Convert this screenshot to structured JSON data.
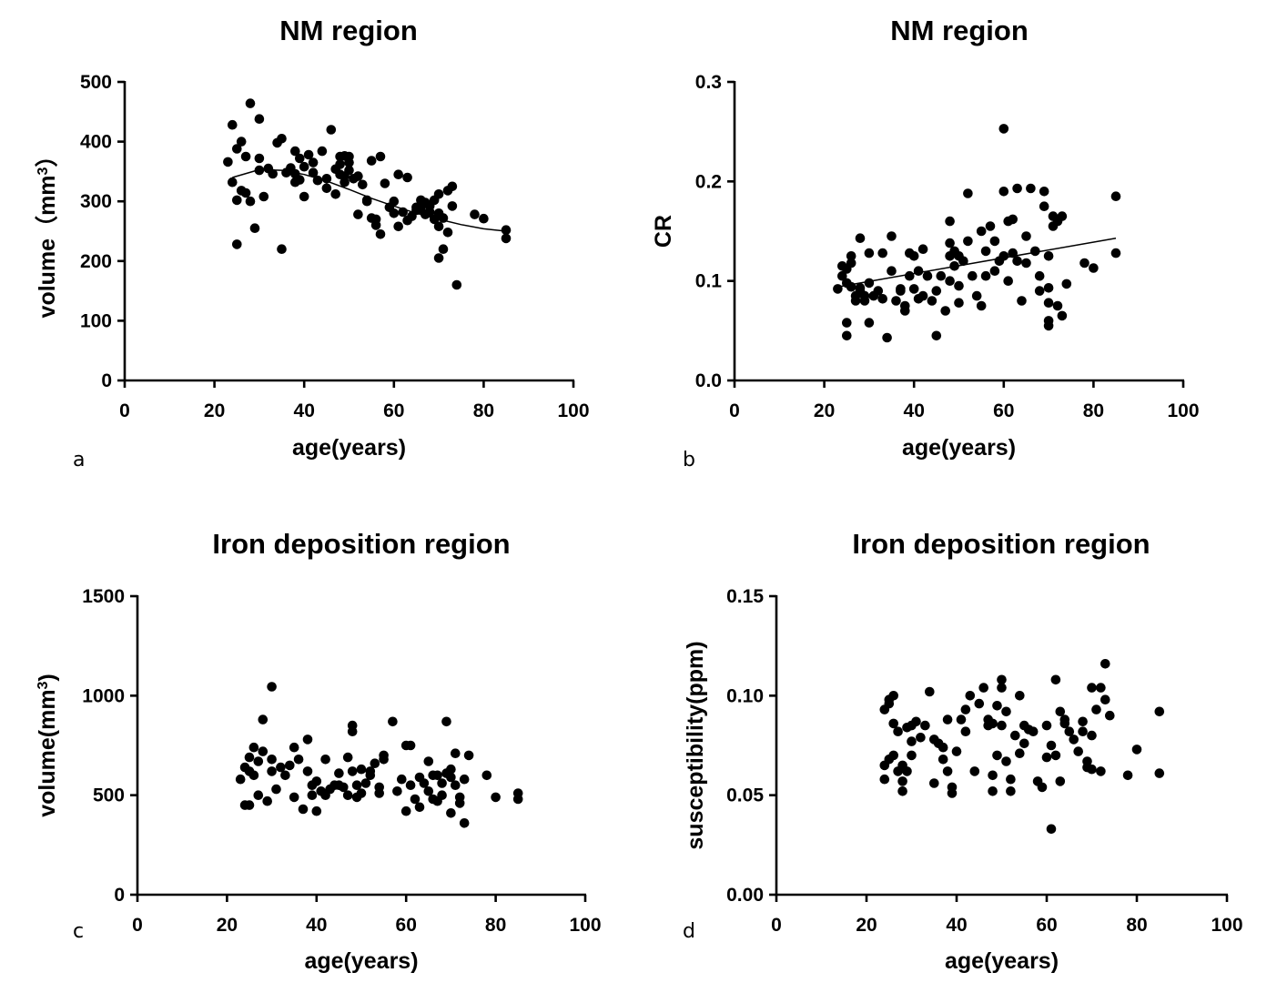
{
  "chart_data": [
    {
      "id": "a",
      "type": "scatter",
      "panel_label": "a",
      "title": "NM region",
      "xlabel": "age(years)",
      "ylabel": {
        "main": "volume（mm",
        "sup": "3",
        "close": "）"
      },
      "xlim": [
        0,
        100
      ],
      "ylim": [
        0,
        500
      ],
      "xticks": [
        "0",
        "20",
        "40",
        "60",
        "80",
        "100"
      ],
      "yticks": [
        "0",
        "100",
        "200",
        "300",
        "400",
        "500"
      ],
      "trend": {
        "type": "polynomial",
        "x": [
          24,
          30,
          35,
          40,
          45,
          50,
          55,
          60,
          65,
          70,
          75,
          80,
          85
        ],
        "y": [
          340,
          353,
          352,
          345,
          334,
          320,
          305,
          292,
          280,
          270,
          261,
          254,
          250
        ]
      },
      "x": [
        23,
        24,
        24,
        25,
        25,
        25,
        26,
        26,
        27,
        27,
        28,
        28,
        29,
        30,
        30,
        30,
        31,
        32,
        33,
        34,
        35,
        35,
        36,
        37,
        38,
        38,
        38,
        39,
        39,
        40,
        40,
        41,
        42,
        42,
        43,
        44,
        45,
        45,
        46,
        47,
        47,
        48,
        48,
        48,
        49,
        49,
        49,
        50,
        50,
        50,
        51,
        52,
        52,
        53,
        54,
        54,
        55,
        55,
        56,
        56,
        57,
        57,
        58,
        59,
        60,
        60,
        61,
        61,
        62,
        63,
        63,
        64,
        65,
        65,
        66,
        66,
        67,
        67,
        68,
        68,
        69,
        69,
        70,
        70,
        70,
        70,
        71,
        71,
        72,
        72,
        73,
        73,
        74,
        78,
        80,
        85,
        85
      ],
      "y": [
        366,
        332,
        428,
        388,
        302,
        228,
        318,
        400,
        375,
        314,
        464,
        300,
        255,
        438,
        372,
        352,
        308,
        355,
        346,
        398,
        405,
        220,
        348,
        356,
        346,
        332,
        384,
        336,
        372,
        358,
        308,
        378,
        365,
        348,
        335,
        384,
        338,
        322,
        420,
        312,
        354,
        375,
        345,
        362,
        332,
        342,
        376,
        352,
        365,
        375,
        338,
        342,
        278,
        328,
        300,
        302,
        272,
        368,
        260,
        270,
        245,
        375,
        330,
        290,
        300,
        280,
        258,
        345,
        282,
        268,
        340,
        275,
        290,
        285,
        302,
        287,
        298,
        278,
        292,
        282,
        302,
        270,
        312,
        258,
        280,
        205,
        272,
        220,
        318,
        248,
        292,
        325,
        160,
        278,
        271,
        238,
        252
      ]
    },
    {
      "id": "b",
      "type": "scatter",
      "panel_label": "b",
      "title": "NM region",
      "xlabel": "age(years)",
      "ylabel": {
        "main": "CR"
      },
      "xlim": [
        0,
        100
      ],
      "ylim": [
        0.0,
        0.3
      ],
      "xticks": [
        "0",
        "20",
        "40",
        "60",
        "80",
        "100"
      ],
      "yticks": [
        "0.0",
        "0.1",
        "0.2",
        "0.3"
      ],
      "trend": {
        "type": "linear",
        "x": [
          23,
          85
        ],
        "y": [
          0.094,
          0.143
        ]
      },
      "x": [
        23,
        24,
        24,
        25,
        25,
        25,
        25,
        26,
        26,
        26,
        27,
        27,
        28,
        28,
        28,
        29,
        29,
        30,
        30,
        30,
        31,
        32,
        33,
        33,
        34,
        35,
        35,
        36,
        37,
        37,
        38,
        38,
        39,
        39,
        40,
        40,
        41,
        41,
        42,
        42,
        43,
        44,
        45,
        45,
        46,
        47,
        48,
        48,
        48,
        48,
        49,
        49,
        50,
        50,
        50,
        51,
        52,
        52,
        53,
        54,
        55,
        55,
        56,
        56,
        57,
        58,
        58,
        59,
        60,
        60,
        60,
        61,
        61,
        62,
        62,
        63,
        63,
        64,
        65,
        65,
        66,
        67,
        68,
        68,
        69,
        69,
        70,
        70,
        70,
        70,
        70,
        71,
        71,
        72,
        72,
        73,
        73,
        74,
        78,
        80,
        85,
        85
      ],
      "y": [
        0.092,
        0.105,
        0.115,
        0.098,
        0.112,
        0.058,
        0.045,
        0.125,
        0.094,
        0.118,
        0.085,
        0.08,
        0.093,
        0.143,
        0.09,
        0.085,
        0.08,
        0.128,
        0.098,
        0.058,
        0.085,
        0.09,
        0.128,
        0.082,
        0.043,
        0.145,
        0.11,
        0.08,
        0.092,
        0.09,
        0.07,
        0.075,
        0.128,
        0.105,
        0.092,
        0.125,
        0.082,
        0.11,
        0.132,
        0.085,
        0.105,
        0.08,
        0.045,
        0.09,
        0.105,
        0.07,
        0.16,
        0.138,
        0.125,
        0.1,
        0.13,
        0.115,
        0.078,
        0.125,
        0.095,
        0.12,
        0.188,
        0.14,
        0.105,
        0.085,
        0.15,
        0.075,
        0.13,
        0.105,
        0.155,
        0.14,
        0.11,
        0.12,
        0.253,
        0.19,
        0.125,
        0.16,
        0.1,
        0.128,
        0.162,
        0.12,
        0.193,
        0.08,
        0.118,
        0.145,
        0.193,
        0.13,
        0.105,
        0.09,
        0.175,
        0.19,
        0.125,
        0.06,
        0.055,
        0.078,
        0.093,
        0.155,
        0.165,
        0.16,
        0.075,
        0.065,
        0.165,
        0.097,
        0.118,
        0.113,
        0.128,
        0.185
      ]
    },
    {
      "id": "c",
      "type": "scatter",
      "panel_label": "c",
      "title": "Iron deposition region",
      "xlabel": "age(years)",
      "ylabel": {
        "main": "volume(mm",
        "sup": "3",
        "close": ")"
      },
      "xlim": [
        0,
        100
      ],
      "ylim": [
        0,
        1500
      ],
      "xticks": [
        "0",
        "20",
        "40",
        "60",
        "80",
        "100"
      ],
      "yticks": [
        "0",
        "500",
        "1000",
        "1500"
      ],
      "x": [
        23,
        24,
        24,
        25,
        25,
        25,
        26,
        26,
        27,
        27,
        28,
        28,
        29,
        30,
        30,
        30,
        31,
        32,
        33,
        34,
        35,
        35,
        36,
        37,
        38,
        38,
        39,
        39,
        40,
        40,
        41,
        42,
        42,
        43,
        44,
        45,
        45,
        46,
        47,
        47,
        48,
        48,
        48,
        49,
        49,
        50,
        50,
        51,
        52,
        52,
        53,
        54,
        54,
        55,
        55,
        57,
        58,
        59,
        60,
        60,
        61,
        61,
        62,
        63,
        63,
        64,
        65,
        65,
        66,
        66,
        67,
        67,
        68,
        68,
        69,
        69,
        70,
        70,
        70,
        71,
        71,
        72,
        72,
        73,
        73,
        74,
        78,
        80,
        85,
        85
      ],
      "y": [
        580,
        640,
        450,
        690,
        620,
        450,
        740,
        600,
        670,
        500,
        880,
        720,
        470,
        1045,
        680,
        620,
        530,
        640,
        600,
        650,
        740,
        490,
        680,
        430,
        780,
        620,
        500,
        550,
        570,
        420,
        520,
        680,
        500,
        530,
        550,
        610,
        550,
        540,
        690,
        500,
        850,
        820,
        620,
        490,
        550,
        510,
        630,
        560,
        620,
        600,
        660,
        540,
        510,
        680,
        700,
        870,
        520,
        580,
        750,
        420,
        550,
        750,
        480,
        590,
        440,
        560,
        520,
        670,
        600,
        480,
        470,
        600,
        500,
        560,
        610,
        870,
        630,
        590,
        410,
        550,
        710,
        490,
        460,
        580,
        360,
        700,
        600,
        490,
        510,
        480
      ]
    },
    {
      "id": "d",
      "type": "scatter",
      "panel_label": "d",
      "title": "Iron deposition region",
      "xlabel": "age(years)",
      "ylabel": {
        "main": "susceptibility(ppm)"
      },
      "xlim": [
        0,
        100
      ],
      "ylim": [
        0.0,
        0.15
      ],
      "xticks": [
        "0",
        "20",
        "40",
        "60",
        "80",
        "100"
      ],
      "yticks": [
        "0.00",
        "0.05",
        "0.10",
        "0.15"
      ],
      "x": [
        24,
        24,
        24,
        25,
        25,
        25,
        26,
        26,
        26,
        27,
        27,
        28,
        28,
        28,
        29,
        29,
        30,
        30,
        30,
        31,
        32,
        33,
        34,
        35,
        35,
        36,
        37,
        37,
        38,
        38,
        39,
        39,
        40,
        41,
        42,
        42,
        43,
        44,
        45,
        46,
        47,
        47,
        48,
        48,
        48,
        49,
        49,
        50,
        50,
        50,
        51,
        51,
        52,
        52,
        53,
        54,
        54,
        55,
        55,
        56,
        57,
        58,
        59,
        60,
        60,
        61,
        61,
        62,
        62,
        63,
        63,
        64,
        64,
        65,
        66,
        67,
        68,
        68,
        69,
        69,
        70,
        70,
        70,
        71,
        72,
        72,
        73,
        73,
        74,
        78,
        80,
        85,
        85
      ],
      "y": [
        0.093,
        0.065,
        0.058,
        0.098,
        0.068,
        0.096,
        0.1,
        0.086,
        0.07,
        0.082,
        0.062,
        0.065,
        0.057,
        0.052,
        0.084,
        0.062,
        0.085,
        0.077,
        0.07,
        0.087,
        0.079,
        0.085,
        0.102,
        0.078,
        0.056,
        0.076,
        0.068,
        0.074,
        0.088,
        0.062,
        0.054,
        0.051,
        0.072,
        0.088,
        0.093,
        0.082,
        0.1,
        0.062,
        0.096,
        0.104,
        0.085,
        0.088,
        0.086,
        0.06,
        0.052,
        0.07,
        0.095,
        0.108,
        0.104,
        0.085,
        0.092,
        0.067,
        0.058,
        0.052,
        0.08,
        0.071,
        0.1,
        0.085,
        0.076,
        0.083,
        0.082,
        0.057,
        0.054,
        0.069,
        0.085,
        0.033,
        0.075,
        0.108,
        0.07,
        0.092,
        0.057,
        0.086,
        0.088,
        0.082,
        0.078,
        0.072,
        0.082,
        0.087,
        0.067,
        0.064,
        0.104,
        0.08,
        0.063,
        0.093,
        0.062,
        0.104,
        0.098,
        0.116,
        0.09,
        0.06,
        0.073,
        0.092,
        0.061
      ]
    }
  ]
}
